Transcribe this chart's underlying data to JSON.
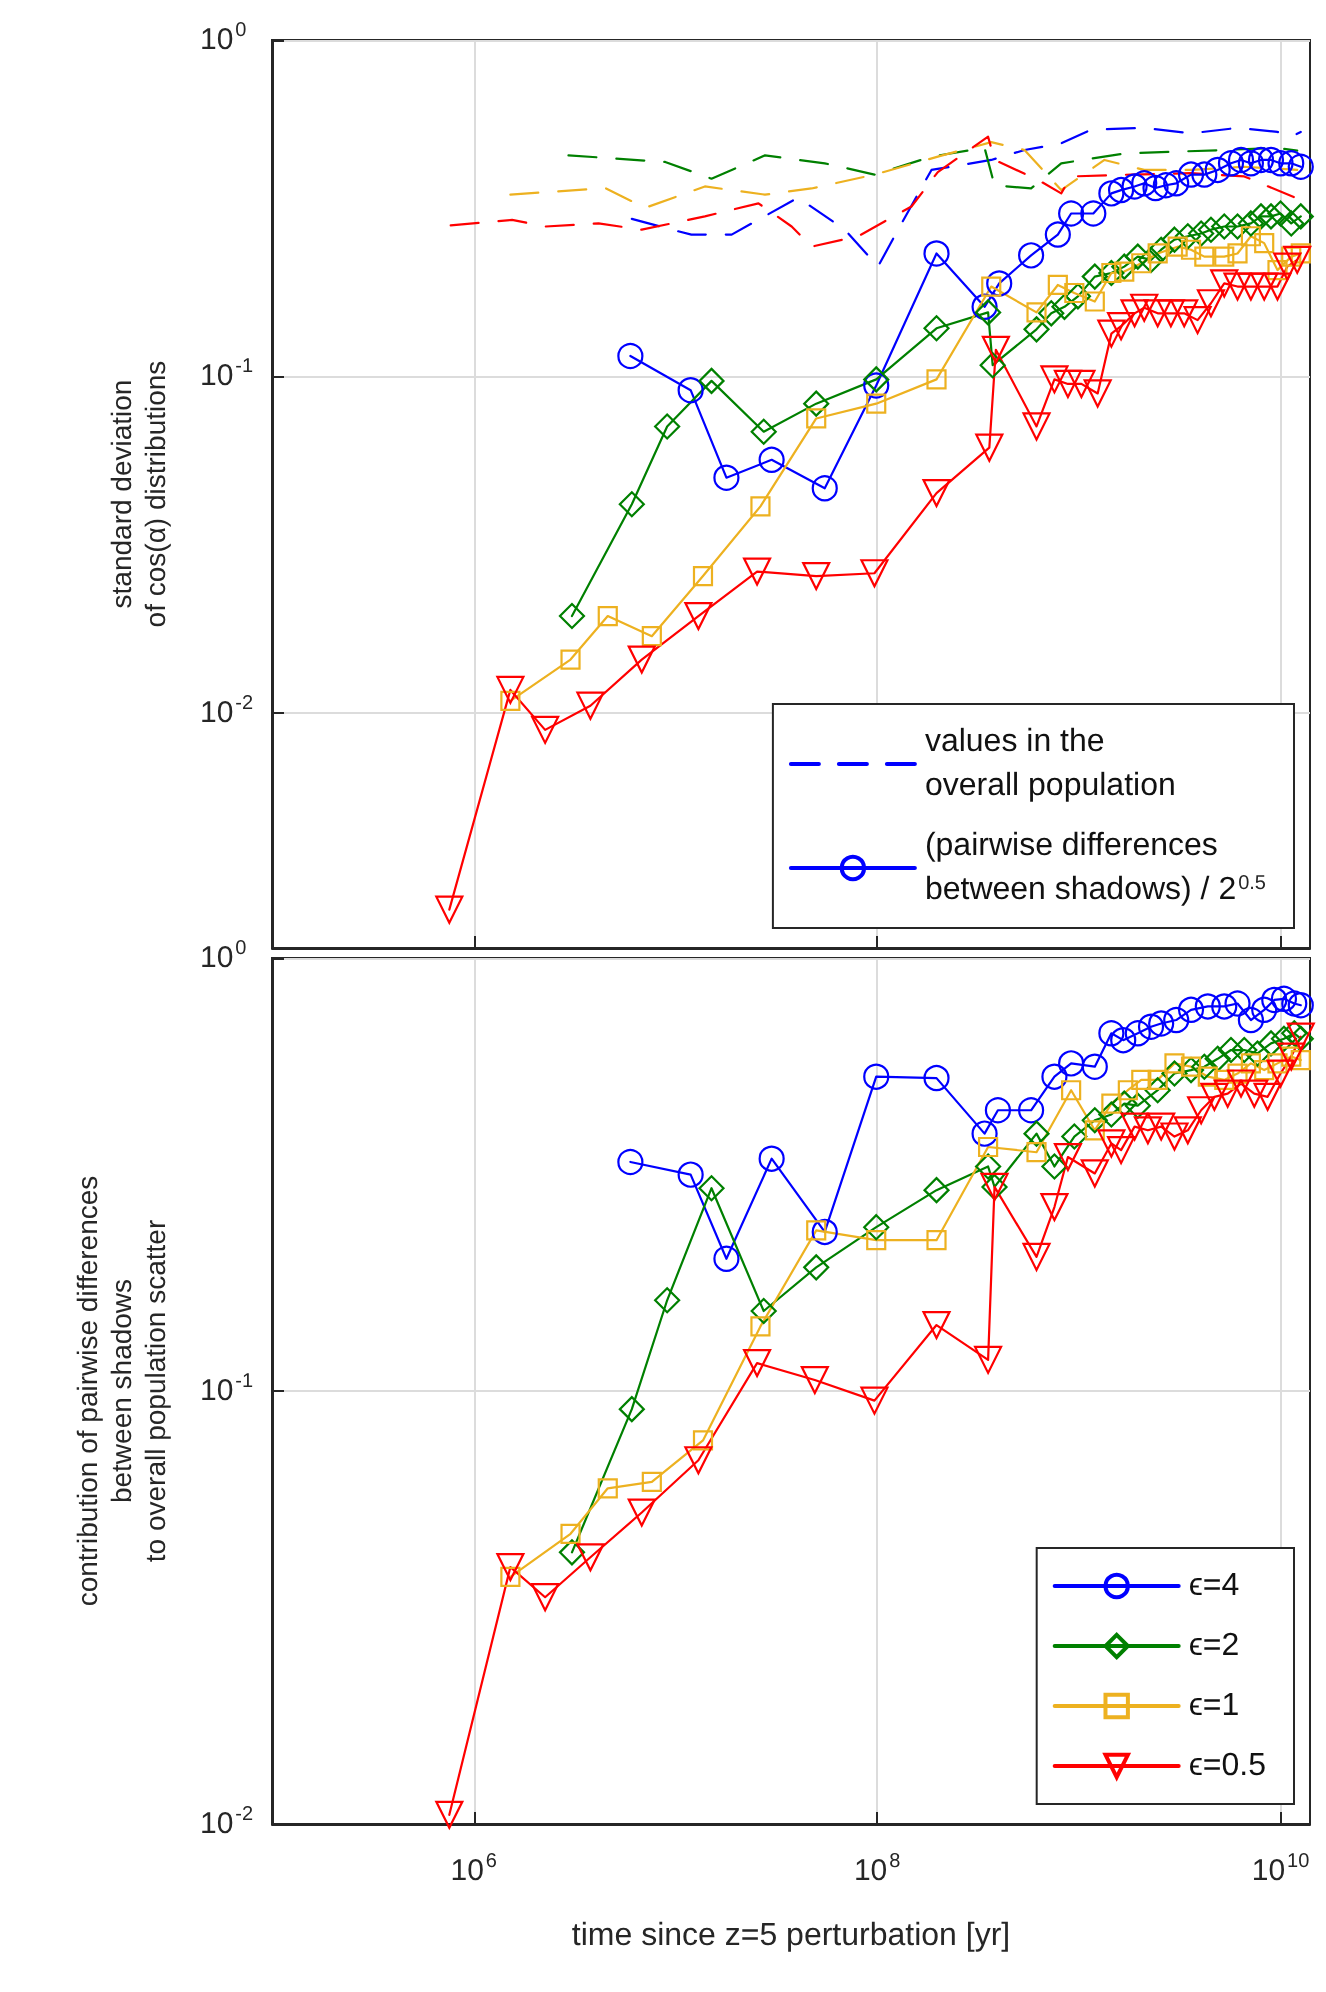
{
  "chart_data": [
    {
      "type": "line",
      "ylabel": "standard deviation\nof cos(α) distributions",
      "log": "xy",
      "grid": true,
      "legend": "bottom right",
      "tick_labels": "y",
      "xlim": [
        100000.0,
        14000000000.0
      ],
      "xticks": [
        {
          "value": 1000000.0,
          "label": null
        },
        {
          "value": 100000000.0,
          "label": null
        },
        {
          "value": 10000000000.0,
          "label": null
        }
      ],
      "ylim": [
        0.002,
        1
      ],
      "yticks": [
        {
          "value": 0.01,
          "label": "10$^{-2}$"
        },
        {
          "value": 0.1,
          "label": "10$^{-1}$"
        },
        {
          "value": 1,
          "label": "10$^{0}$"
        }
      ],
      "series": [
        {
          "name": "values in the\noverall population",
          "color": "#0000ff",
          "marker": "none",
          "line_style": "dashed",
          "x": [
            6080000.0,
            9600000.0,
            12000000.0,
            19000000.0,
            40600000.0,
            69200000.0,
            101000000.0,
            127000000.0,
            186000000.0,
            368000000.0,
            538000000.0,
            818000000.0,
            1150000000.0,
            2110000000.0,
            3600000000.0,
            6120000000.0,
            9660000000.0,
            11300000000.0,
            12600000000.0
          ],
          "values": [
            0.294,
            0.273,
            0.264,
            0.264,
            0.34,
            0.273,
            0.212,
            0.273,
            0.411,
            0.44,
            0.471,
            0.493,
            0.541,
            0.548,
            0.528,
            0.548,
            0.533,
            0.516,
            0.533
          ]
        },
        {
          "name": "(pairwise differences\nbetween shadows) / 2$^{0.5}$",
          "color": "#0000ff",
          "marker": "circle",
          "line_style": "solid",
          "x": [
            5980000.0,
            11900000.0,
            17900000.0,
            30000000.0,
            55000000.0,
            99000000.0,
            197000000.0,
            341000000.0,
            403000000.0,
            580000000.0,
            787000000.0,
            916000000.0,
            1180000000.0,
            1450000000.0,
            1620000000.0,
            1890000000.0,
            2110000000.0,
            2400000000.0,
            2700000000.0,
            3040000000.0,
            3600000000.0,
            4190000000.0,
            4880000000.0,
            5680000000.0,
            6370000000.0,
            7130000000.0,
            8000000000.0,
            8970000000.0,
            10000000000.0,
            11300000000.0,
            12600000000.0
          ],
          "values": [
            0.115,
            0.091,
            0.05,
            0.0565,
            0.0465,
            0.094,
            0.232,
            0.161,
            0.189,
            0.229,
            0.264,
            0.305,
            0.305,
            0.35,
            0.358,
            0.367,
            0.375,
            0.363,
            0.37,
            0.375,
            0.398,
            0.398,
            0.411,
            0.43,
            0.44,
            0.43,
            0.44,
            0.44,
            0.43,
            0.43,
            0.42
          ]
        },
        {
          "color": "#008000",
          "marker": "none",
          "line_style": "dashed",
          "x": [
            2950000.0,
            8900000.0,
            15100000.0,
            27800000.0,
            55000000.0,
            97000000.0,
            186000000.0,
            341000000.0,
            382000000.0,
            580000000.0,
            818000000.0,
            1150000000.0,
            1680000000.0,
            2860000000.0,
            5260000000.0,
            9660000000.0,
            12100000000.0
          ],
          "values": [
            0.454,
            0.434,
            0.387,
            0.454,
            0.43,
            0.398,
            0.45,
            0.478,
            0.37,
            0.362,
            0.43,
            0.444,
            0.46,
            0.465,
            0.471,
            0.478,
            0.469
          ]
        },
        {
          "color": "#edb120",
          "marker": "none",
          "line_style": "dashed",
          "x": [
            1520000.0,
            4490000.0,
            7080000.0,
            14000000.0,
            27800000.0,
            47300000.0,
            97000000.0,
            200000000.0,
            368000000.0,
            538000000.0,
            818000000.0,
            1340000000.0,
            2110000000.0,
            3600000000.0,
            6610000000.0,
            12100000000.0
          ],
          "values": [
            0.347,
            0.363,
            0.317,
            0.367,
            0.347,
            0.362,
            0.398,
            0.45,
            0.497,
            0.471,
            0.358,
            0.44,
            0.411,
            0.411,
            0.42,
            0.411
          ]
        },
        {
          "color": "#ff0000",
          "marker": "none",
          "line_style": "dashed",
          "x": [
            769000.0,
            1550000.0,
            2260000.0,
            4160000.0,
            6810000.0,
            14000000.0,
            25800000.0,
            37700000.0,
            47300000.0,
            80500000.0,
            148000000.0,
            200000000.0,
            355000000.0,
            382000000.0,
            627000000.0,
            818000000.0,
            916000000.0,
            1820000000.0,
            3600000000.0,
            6610000000.0,
            12100000000.0
          ],
          "values": [
            0.281,
            0.292,
            0.279,
            0.285,
            0.273,
            0.299,
            0.327,
            0.279,
            0.243,
            0.261,
            0.32,
            0.405,
            0.516,
            0.44,
            0.384,
            0.35,
            0.393,
            0.398,
            0.402,
            0.393,
            0.338
          ]
        },
        {
          "color": "#008000",
          "marker": "diamond",
          "line_style": "solid",
          "x": [
            3070000.0,
            6080000.0,
            9100000.0,
            15100000.0,
            27400000.0,
            49900000.0,
            99000000.0,
            197000000.0,
            355000000.0,
            374000000.0,
            617000000.0,
            730000000.0,
            849000000.0,
            990000000.0,
            1200000000.0,
            1450000000.0,
            1680000000.0,
            1960000000.0,
            2280000000.0,
            2560000000.0,
            2980000000.0,
            3470000000.0,
            4040000000.0,
            4520000000.0,
            5260000000.0,
            6120000000.0,
            7130000000.0,
            8000000000.0,
            8970000000.0,
            10000000000.0,
            11300000000.0,
            12600000000.0
          ],
          "values": [
            0.0194,
            0.0417,
            0.071,
            0.097,
            0.0685,
            0.083,
            0.098,
            0.139,
            0.155,
            0.108,
            0.138,
            0.154,
            0.161,
            0.173,
            0.198,
            0.203,
            0.212,
            0.227,
            0.222,
            0.238,
            0.255,
            0.261,
            0.266,
            0.273,
            0.279,
            0.279,
            0.285,
            0.299,
            0.299,
            0.305,
            0.285,
            0.299
          ]
        },
        {
          "color": "#edb120",
          "marker": "square",
          "line_style": "solid",
          "x": [
            1520000.0,
            3020000.0,
            4620000.0,
            7640000.0,
            13700000.0,
            26400000.0,
            49900000.0,
            99000000.0,
            197000000.0,
            368000000.0,
            617000000.0,
            787000000.0,
            950000000.0,
            1200000000.0,
            1450000000.0,
            1680000000.0,
            2040000000.0,
            2460000000.0,
            3090000000.0,
            3600000000.0,
            4190000000.0,
            5260000000.0,
            6120000000.0,
            7130000000.0,
            8300000000.0,
            9660000000.0,
            11300000000.0,
            12600000000.0
          ],
          "values": [
            0.01085,
            0.0144,
            0.0194,
            0.0169,
            0.0255,
            0.0411,
            0.075,
            0.083,
            0.098,
            0.185,
            0.155,
            0.187,
            0.177,
            0.167,
            0.203,
            0.205,
            0.217,
            0.232,
            0.243,
            0.238,
            0.227,
            0.227,
            0.232,
            0.261,
            0.249,
            0.207,
            0.227,
            0.232
          ]
        },
        {
          "color": "#ff0000",
          "marker": "triangle",
          "line_style": "solid",
          "x": [
            757000.0,
            1520000.0,
            2260000.0,
            3790000.0,
            6810000.0,
            13000000.0,
            25400000.0,
            49900000.0,
            97000000.0,
            197000000.0,
            360000000.0,
            388000000.0,
            617000000.0,
            757000000.0,
            883000000.0,
            1030000000.0,
            1240000000.0,
            1450000000.0,
            1620000000.0,
            1890000000.0,
            2110000000.0,
            2460000000.0,
            2860000000.0,
            3330000000.0,
            3880000000.0,
            4520000000.0,
            5260000000.0,
            6120000000.0,
            7130000000.0,
            8300000000.0,
            9660000000.0,
            10800000000.0,
            12100000000.0
          ],
          "values": [
            0.0026,
            0.0117,
            0.0089,
            0.0105,
            0.0144,
            0.0194,
            0.0263,
            0.0255,
            0.026,
            0.045,
            0.0614,
            0.12,
            0.071,
            0.098,
            0.095,
            0.095,
            0.089,
            0.134,
            0.141,
            0.154,
            0.16,
            0.154,
            0.154,
            0.154,
            0.147,
            0.165,
            0.189,
            0.185,
            0.185,
            0.185,
            0.185,
            0.212,
            0.222
          ]
        }
      ]
    },
    {
      "type": "line",
      "xlabel": "time since z=5 perturbation [yr]",
      "ylabel": "contribution of pairwise differences\nbetween shadows\nto overall population scatter",
      "log": "xy",
      "grid": true,
      "legend": "bottom right",
      "xlim": [
        100000.0,
        14000000000.0
      ],
      "xticks": [
        {
          "value": 1000000.0,
          "label": "10$^{6}$"
        },
        {
          "value": 100000000.0,
          "label": "10$^{8}$"
        },
        {
          "value": 10000000000.0,
          "label": "10$^{10}$"
        }
      ],
      "ylim": [
        0.01,
        1
      ],
      "yticks": [
        {
          "value": 0.01,
          "label": "10$^{-2}$"
        },
        {
          "value": 0.1,
          "label": "10$^{-1}$"
        },
        {
          "value": 1,
          "label": "10$^{0}$"
        }
      ],
      "series": [
        {
          "name": "ϵ=4",
          "color": "#0000ff",
          "marker": "circle",
          "line_style": "solid",
          "x": [
            5980000.0,
            11900000.0,
            17900000.0,
            30000000.0,
            55000000.0,
            99000000.0,
            197000000.0,
            341000000.0,
            397000000.0,
            580000000.0,
            757000000.0,
            916000000.0,
            1200000000.0,
            1450000000.0,
            1660000000.0,
            1960000000.0,
            2280000000.0,
            2560000000.0,
            3040000000.0,
            3600000000.0,
            4360000000.0,
            5260000000.0,
            6120000000.0,
            7130000000.0,
            8300000000.0,
            9310000000.0,
            10400000000.0,
            11700000000.0,
            12600000000.0
          ],
          "values": [
            0.338,
            0.316,
            0.202,
            0.344,
            0.233,
            0.532,
            0.528,
            0.393,
            0.445,
            0.445,
            0.532,
            0.571,
            0.561,
            0.67,
            0.646,
            0.67,
            0.694,
            0.706,
            0.719,
            0.759,
            0.773,
            0.773,
            0.785,
            0.719,
            0.759,
            0.8,
            0.805,
            0.785,
            0.778
          ]
        },
        {
          "name": "ϵ=2",
          "color": "#008000",
          "marker": "diamond",
          "line_style": "solid",
          "x": [
            3070000.0,
            6080000.0,
            9100000.0,
            15100000.0,
            27400000.0,
            49900000.0,
            99000000.0,
            197000000.0,
            355000000.0,
            382000000.0,
            617000000.0,
            757000000.0,
            950000000.0,
            1200000000.0,
            1450000000.0,
            1680000000.0,
            1960000000.0,
            2460000000.0,
            2980000000.0,
            3600000000.0,
            4190000000.0,
            4880000000.0,
            5680000000.0,
            6610000000.0,
            7690000000.0,
            8970000000.0,
            10400000000.0,
            11700000000.0,
            12600000000.0
          ],
          "values": [
            0.0424,
            0.0908,
            0.162,
            0.294,
            0.153,
            0.193,
            0.239,
            0.291,
            0.33,
            0.296,
            0.393,
            0.33,
            0.387,
            0.422,
            0.435,
            0.461,
            0.456,
            0.495,
            0.541,
            0.551,
            0.561,
            0.585,
            0.613,
            0.613,
            0.602,
            0.635,
            0.651,
            0.67,
            0.651
          ]
        },
        {
          "name": "ϵ=1",
          "color": "#edb120",
          "marker": "square",
          "line_style": "solid",
          "x": [
            1520000.0,
            3020000.0,
            4620000.0,
            7640000.0,
            13700000.0,
            26400000.0,
            49900000.0,
            99000000.0,
            197000000.0,
            355000000.0,
            617000000.0,
            916000000.0,
            1200000000.0,
            1450000000.0,
            1750000000.0,
            2040000000.0,
            2460000000.0,
            2980000000.0,
            3600000000.0,
            4360000000.0,
            5260000000.0,
            6120000000.0,
            7130000000.0,
            8300000000.0,
            9660000000.0,
            11300000000.0,
            12600000000.0
          ],
          "values": [
            0.0372,
            0.0468,
            0.0596,
            0.0617,
            0.0769,
            0.141,
            0.235,
            0.223,
            0.223,
            0.366,
            0.356,
            0.495,
            0.4,
            0.461,
            0.495,
            0.523,
            0.523,
            0.571,
            0.561,
            0.532,
            0.523,
            0.541,
            0.571,
            0.551,
            0.571,
            0.592,
            0.581
          ]
        },
        {
          "name": "ϵ=0.5",
          "color": "#ff0000",
          "marker": "triangle",
          "line_style": "solid",
          "x": [
            757000.0,
            1520000.0,
            2260000.0,
            3790000.0,
            6810000.0,
            13000000.0,
            25400000.0,
            49100000.0,
            97000000.0,
            197000000.0,
            355000000.0,
            382000000.0,
            617000000.0,
            757000000.0,
            883000000.0,
            1200000000.0,
            1450000000.0,
            1620000000.0,
            1890000000.0,
            2200000000.0,
            2560000000.0,
            2980000000.0,
            3470000000.0,
            4040000000.0,
            4700000000.0,
            5470000000.0,
            6370000000.0,
            7410000000.0,
            8630000000.0,
            10000000000.0,
            11300000000.0,
            12600000000.0
          ],
          "values": [
            0.0105,
            0.0392,
            0.0334,
            0.0413,
            0.0524,
            0.0692,
            0.116,
            0.106,
            0.095,
            0.142,
            0.118,
            0.296,
            0.204,
            0.266,
            0.347,
            0.318,
            0.373,
            0.36,
            0.408,
            0.4,
            0.408,
            0.387,
            0.4,
            0.445,
            0.478,
            0.486,
            0.513,
            0.486,
            0.478,
            0.541,
            0.592,
            0.658
          ]
        }
      ]
    }
  ]
}
